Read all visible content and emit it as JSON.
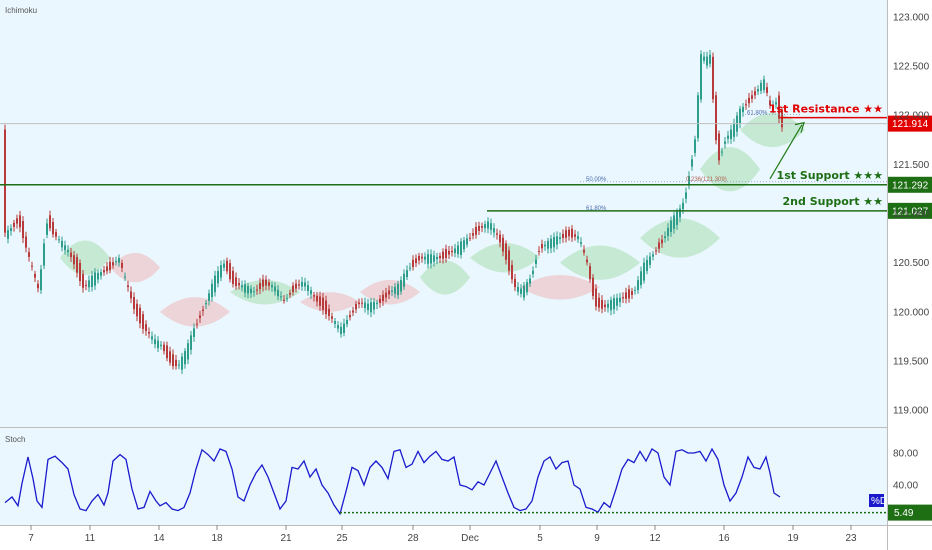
{
  "chart_data": [
    {
      "type": "candlestick",
      "indicator": "Ichimoku",
      "ylim": [
        118.9,
        123.1
      ],
      "y_ticks": [
        "123.000",
        "122.500",
        "122.000",
        "121.500",
        "121.000",
        "120.500",
        "120.000",
        "119.500",
        "119.000"
      ],
      "x_ticks": [
        "7",
        "11",
        "14",
        "18",
        "21",
        "25",
        "28",
        "Dec",
        "5",
        "9",
        "12",
        "16",
        "19",
        "23"
      ],
      "current_price": "121.914",
      "levels": [
        {
          "label": "1st Resistance ★★",
          "value": "121.914",
          "color": "#e00000"
        },
        {
          "label": "1st Support ★★★",
          "value": "121.292",
          "color": "#1e6e14"
        },
        {
          "label": "2nd Support ★★",
          "value": "121.027",
          "color": "#1e6e14"
        }
      ],
      "fib_labels": [
        "50.00%",
        "61.80%",
        "0.236(121.309)",
        "61.80%"
      ],
      "colors": {
        "up": "#2e9e8c",
        "down": "#b83a3a",
        "cloud_green": "#a8dfb0",
        "cloud_red": "#efb8b8",
        "background": "#eaf7ff"
      }
    },
    {
      "type": "line",
      "indicator": "Stoch",
      "ylim": [
        0,
        100
      ],
      "y_ticks": [
        "80.00",
        "40.00"
      ],
      "badge": "%D",
      "current_level": "5.49",
      "color": "#1a1acc"
    }
  ]
}
